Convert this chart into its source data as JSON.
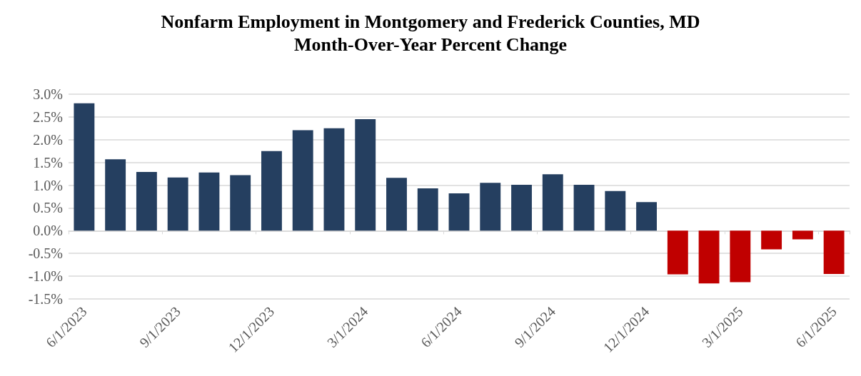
{
  "chart_data": {
    "type": "bar",
    "title": "Nonfarm Employment in Montgomery and Frederick Counties, MD",
    "subtitle": "Month-Over-Year Percent Change",
    "categories": [
      "6/1/2023",
      null,
      null,
      "9/1/2023",
      null,
      null,
      "12/1/2023",
      null,
      null,
      "3/1/2024",
      null,
      null,
      "6/1/2024",
      null,
      null,
      "9/1/2024",
      null,
      null,
      "12/1/2024",
      null,
      null,
      "3/1/2025",
      null,
      null,
      "6/1/2025"
    ],
    "values": [
      2.8,
      1.57,
      1.29,
      1.17,
      1.28,
      1.22,
      1.75,
      2.21,
      2.25,
      2.45,
      1.16,
      0.93,
      0.82,
      1.05,
      1.01,
      1.24,
      1.01,
      0.87,
      0.63,
      -0.96,
      -1.16,
      -1.13,
      -0.41,
      -0.19,
      -0.95
    ],
    "colors": [
      "#253f60",
      "#253f60",
      "#253f60",
      "#253f60",
      "#253f60",
      "#253f60",
      "#253f60",
      "#253f60",
      "#253f60",
      "#253f60",
      "#253f60",
      "#253f60",
      "#253f60",
      "#253f60",
      "#253f60",
      "#253f60",
      "#253f60",
      "#253f60",
      "#253f60",
      "#c00000",
      "#c00000",
      "#c00000",
      "#c00000",
      "#c00000",
      "#c00000"
    ],
    "ylim": [
      -1.5,
      3.0
    ],
    "yticks": [
      {
        "value": -1.5,
        "label": "-1.5%"
      },
      {
        "value": -1.0,
        "label": "-1.0%"
      },
      {
        "value": -0.5,
        "label": "-0.5%"
      },
      {
        "value": 0,
        "label": "0.0%"
      },
      {
        "value": 0.5,
        "label": "0.5%"
      },
      {
        "value": 1.0,
        "label": "1.0%"
      },
      {
        "value": 1.5,
        "label": "1.5%"
      },
      {
        "value": 2.0,
        "label": "2.0%"
      },
      {
        "value": 2.5,
        "label": "2.5%"
      },
      {
        "value": 3.0,
        "label": "3.0%"
      }
    ],
    "grid": "y"
  }
}
